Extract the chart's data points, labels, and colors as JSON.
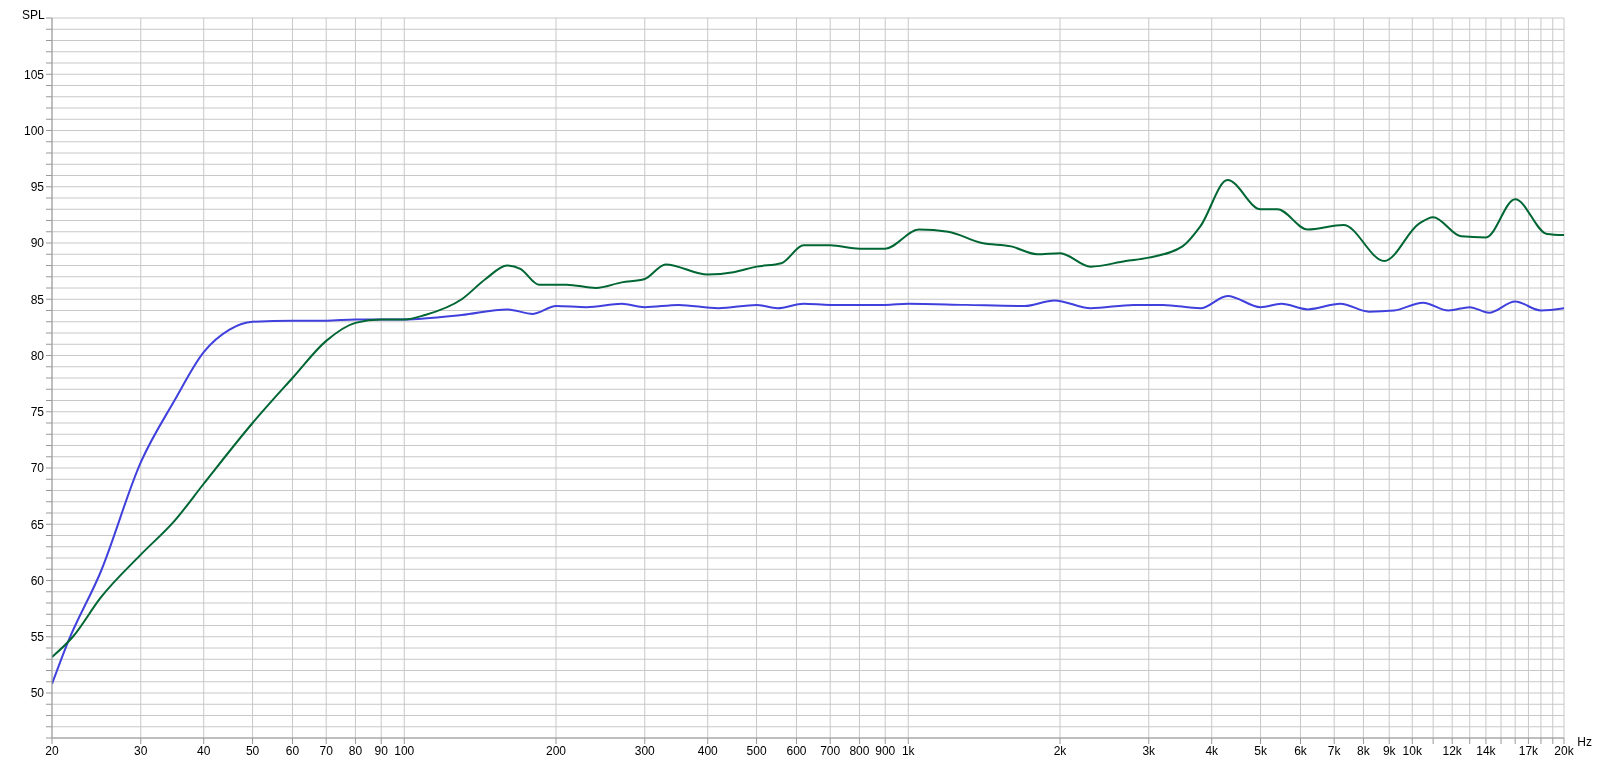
{
  "chart_data": {
    "type": "line",
    "ylabel": "SPL",
    "xlabel": "Hz",
    "xlim": [
      20,
      20000
    ],
    "ylim": [
      46,
      110
    ],
    "log": "x",
    "grid": true,
    "marker": "none",
    "line_style": "solid",
    "xticks": [
      20,
      30,
      40,
      50,
      60,
      70,
      80,
      90,
      100,
      200,
      300,
      400,
      500,
      600,
      700,
      800,
      900,
      {
        "value": 1000,
        "label": "1k"
      },
      {
        "value": 2000,
        "label": "2k"
      },
      {
        "value": 3000,
        "label": "3k"
      },
      {
        "value": 4000,
        "label": "4k"
      },
      {
        "value": 5000,
        "label": "5k"
      },
      {
        "value": 6000,
        "label": "6k"
      },
      {
        "value": 7000,
        "label": "7k"
      },
      {
        "value": 8000,
        "label": "8k"
      },
      {
        "value": 9000,
        "label": "9k"
      },
      {
        "value": 10000,
        "label": "10k"
      },
      {
        "value": 11000,
        "label": null
      },
      {
        "value": 12000,
        "label": "12k"
      },
      {
        "value": 13000,
        "label": null
      },
      {
        "value": 14000,
        "label": "14k"
      },
      {
        "value": 15000,
        "label": null
      },
      {
        "value": 16000,
        "label": null
      },
      {
        "value": 17000,
        "label": "17k"
      },
      {
        "value": 18000,
        "label": null
      },
      {
        "value": 19000,
        "label": null
      },
      {
        "value": 20000,
        "label": "20k"
      }
    ],
    "yticks": [
      {
        "value": 46,
        "label": null
      },
      {
        "value": 47,
        "label": null
      },
      {
        "value": 48,
        "label": null
      },
      {
        "value": 49,
        "label": null
      },
      50,
      {
        "value": 51,
        "label": null
      },
      {
        "value": 52,
        "label": null
      },
      {
        "value": 53,
        "label": null
      },
      {
        "value": 54,
        "label": null
      },
      55,
      {
        "value": 56,
        "label": null
      },
      {
        "value": 57,
        "label": null
      },
      {
        "value": 58,
        "label": null
      },
      {
        "value": 59,
        "label": null
      },
      60,
      {
        "value": 61,
        "label": null
      },
      {
        "value": 62,
        "label": null
      },
      {
        "value": 63,
        "label": null
      },
      {
        "value": 64,
        "label": null
      },
      65,
      {
        "value": 66,
        "label": null
      },
      {
        "value": 67,
        "label": null
      },
      {
        "value": 68,
        "label": null
      },
      {
        "value": 69,
        "label": null
      },
      70,
      {
        "value": 71,
        "label": null
      },
      {
        "value": 72,
        "label": null
      },
      {
        "value": 73,
        "label": null
      },
      {
        "value": 74,
        "label": null
      },
      75,
      {
        "value": 76,
        "label": null
      },
      {
        "value": 77,
        "label": null
      },
      {
        "value": 78,
        "label": null
      },
      {
        "value": 79,
        "label": null
      },
      80,
      {
        "value": 81,
        "label": null
      },
      {
        "value": 82,
        "label": null
      },
      {
        "value": 83,
        "label": null
      },
      {
        "value": 84,
        "label": null
      },
      85,
      {
        "value": 86,
        "label": null
      },
      {
        "value": 87,
        "label": null
      },
      {
        "value": 88,
        "label": null
      },
      {
        "value": 89,
        "label": null
      },
      90,
      {
        "value": 91,
        "label": null
      },
      {
        "value": 92,
        "label": null
      },
      {
        "value": 93,
        "label": null
      },
      {
        "value": 94,
        "label": null
      },
      95,
      {
        "value": 96,
        "label": null
      },
      {
        "value": 97,
        "label": null
      },
      {
        "value": 98,
        "label": null
      },
      {
        "value": 99,
        "label": null
      },
      100,
      {
        "value": 101,
        "label": null
      },
      {
        "value": 102,
        "label": null
      },
      {
        "value": 103,
        "label": null
      },
      {
        "value": 104,
        "label": null
      },
      105,
      {
        "value": 106,
        "label": null
      },
      {
        "value": 107,
        "label": null
      },
      {
        "value": 108,
        "label": null
      },
      {
        "value": 109,
        "label": null
      },
      {
        "value": 110,
        "label": null
      }
    ],
    "series": [
      {
        "color": "#4040dd",
        "x": [
          20,
          21.5,
          25,
          30,
          35,
          40,
          45,
          50,
          60,
          70,
          80,
          100,
          130,
          160,
          180,
          200,
          230,
          270,
          300,
          350,
          420,
          500,
          550,
          620,
          700,
          900,
          1000,
          1300,
          1700,
          1950,
          2300,
          2800,
          3200,
          3800,
          4300,
          5000,
          5500,
          6200,
          7200,
          8200,
          9200,
          10500,
          11800,
          13000,
          14200,
          16000,
          18000,
          20000
        ],
        "values": [
          50.8,
          54.5,
          60.8,
          70.5,
          76,
          80.3,
          82.3,
          83.0,
          83.1,
          83.1,
          83.2,
          83.2,
          83.6,
          84.1,
          83.7,
          84.4,
          84.3,
          84.6,
          84.3,
          84.5,
          84.2,
          84.5,
          84.2,
          84.6,
          84.5,
          84.5,
          84.6,
          84.5,
          84.4,
          84.9,
          84.2,
          84.5,
          84.5,
          84.2,
          85.3,
          84.3,
          84.6,
          84.1,
          84.6,
          83.9,
          84.0,
          84.7,
          84.0,
          84.3,
          83.8,
          84.8,
          84.0,
          84.2
        ]
      },
      {
        "color": "#006633",
        "x": [
          20,
          22,
          25,
          30,
          35,
          40,
          50,
          60,
          70,
          80,
          90,
          100,
          110,
          130,
          145,
          160,
          170,
          185,
          210,
          240,
          270,
          300,
          330,
          400,
          450,
          500,
          560,
          620,
          700,
          800,
          900,
          1050,
          1200,
          1400,
          1600,
          1800,
          2000,
          2300,
          2700,
          3000,
          3500,
          3800,
          4300,
          5000,
          5400,
          6200,
          7300,
          8800,
          10300,
          11000,
          12500,
          14000,
          16000,
          18500,
          20000
        ],
        "values": [
          53.2,
          55,
          58.5,
          62.3,
          65.3,
          68.6,
          74.0,
          78.0,
          81.3,
          82.9,
          83.2,
          83.2,
          83.6,
          85.0,
          86.8,
          88.0,
          87.7,
          86.3,
          86.3,
          86.0,
          86.5,
          86.8,
          88.1,
          87.2,
          87.4,
          87.9,
          88.2,
          89.8,
          89.8,
          89.5,
          89.5,
          91.2,
          91.0,
          90.0,
          89.7,
          89.0,
          89.1,
          87.9,
          88.4,
          88.7,
          89.7,
          91.5,
          95.6,
          93.0,
          93.0,
          91.2,
          91.6,
          88.4,
          91.7,
          92.3,
          90.6,
          90.5,
          93.9,
          90.8,
          90.7
        ]
      }
    ]
  }
}
